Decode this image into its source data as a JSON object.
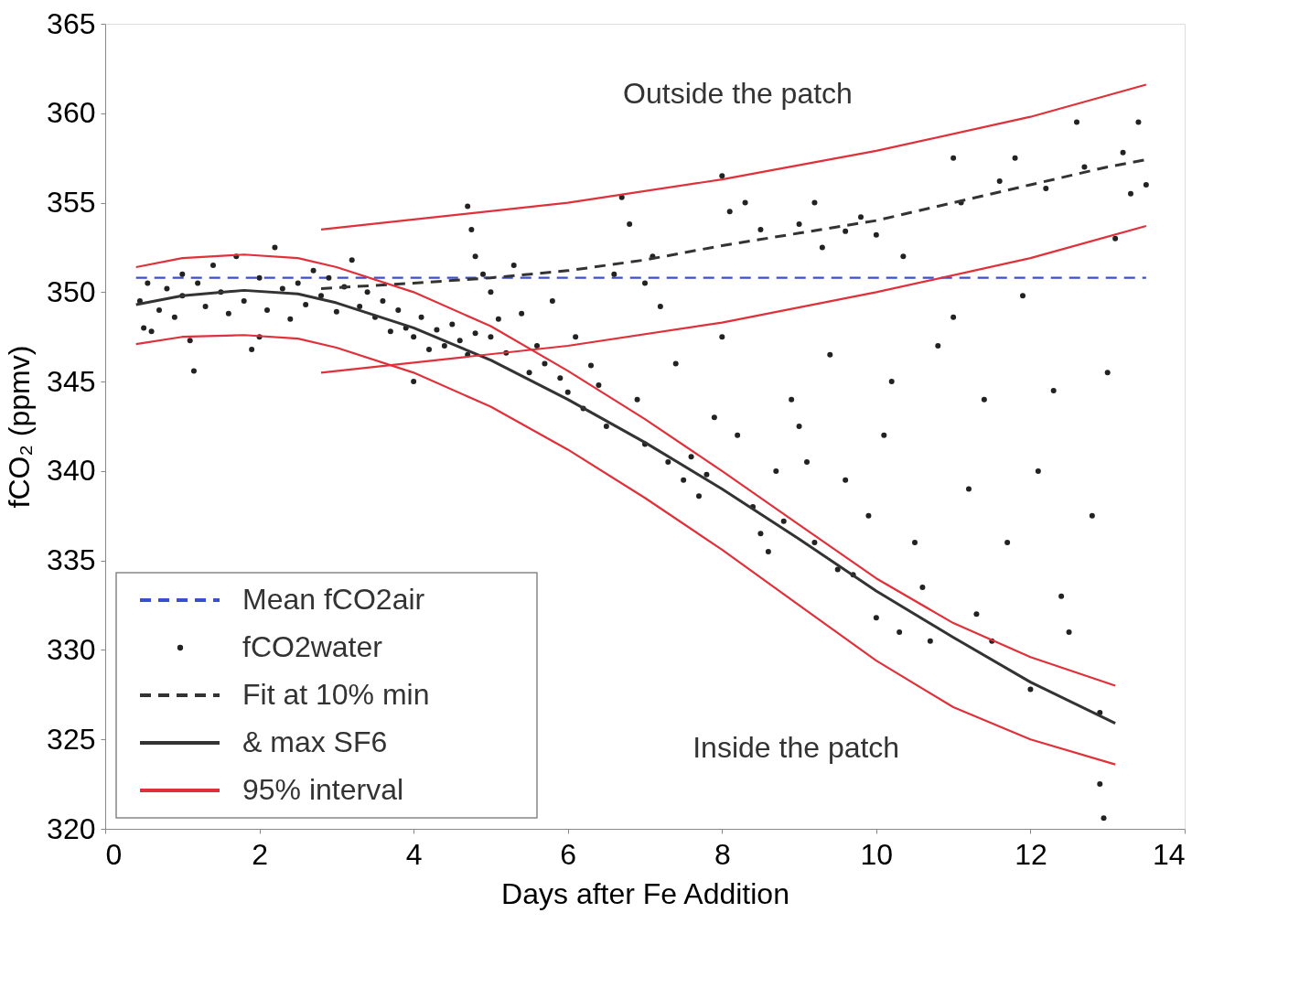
{
  "chart_data": {
    "type": "scatter",
    "xlabel": "Days after Fe Addition",
    "ylabel": "fCO₂ (ppmv)",
    "xlim": [
      0,
      14
    ],
    "ylim": [
      320,
      365
    ],
    "xticks": [
      0,
      2,
      4,
      6,
      8,
      10,
      12,
      14
    ],
    "yticks": [
      320,
      325,
      330,
      335,
      340,
      345,
      350,
      355,
      360,
      365
    ],
    "grid": false,
    "legend": "bottom left",
    "annotations": [
      "Outside the patch",
      "Inside the patch"
    ],
    "series": [
      {
        "name": "Mean fCO2air",
        "type": "line",
        "line_style": "dashed",
        "color": "#3a4fd0",
        "x": [
          0.4,
          13.5
        ],
        "values": [
          350.8,
          350.8
        ]
      },
      {
        "name": "fCO2water",
        "marker": "circle",
        "color": "#222222",
        "x": [
          0.45,
          0.5,
          0.55,
          0.6,
          0.7,
          0.8,
          0.9,
          1.0,
          1.0,
          1.1,
          1.15,
          1.2,
          1.3,
          1.4,
          1.5,
          1.6,
          1.7,
          1.8,
          1.9,
          2.0,
          2.0,
          2.1,
          2.2,
          2.3,
          2.4,
          2.5,
          2.6,
          2.7,
          2.8,
          2.9,
          3.0,
          3.1,
          3.2,
          3.3,
          3.4,
          3.5,
          3.6,
          3.7,
          3.8,
          3.9,
          4.0,
          4.0,
          4.1,
          4.2,
          4.3,
          4.4,
          4.5,
          4.6,
          4.7,
          4.7,
          4.75,
          4.8,
          4.8,
          4.9,
          5.0,
          5.0,
          5.1,
          5.2,
          5.3,
          5.4,
          5.5,
          5.6,
          5.7,
          5.8,
          5.9,
          6.0,
          6.1,
          6.2,
          6.3,
          6.4,
          6.5,
          6.6,
          6.7,
          6.8,
          6.9,
          7.0,
          7.0,
          7.1,
          7.2,
          7.3,
          7.4,
          7.5,
          7.6,
          7.7,
          7.8,
          7.9,
          8.0,
          8.0,
          8.1,
          8.2,
          8.3,
          8.4,
          8.5,
          8.5,
          8.6,
          8.7,
          8.8,
          8.9,
          9.0,
          9.0,
          9.1,
          9.2,
          9.2,
          9.3,
          9.4,
          9.5,
          9.6,
          9.6,
          9.7,
          9.8,
          9.9,
          10.0,
          10.0,
          10.1,
          10.2,
          10.3,
          10.35,
          10.5,
          10.6,
          10.7,
          10.8,
          11.0,
          11.0,
          11.1,
          11.2,
          11.3,
          11.4,
          11.5,
          11.6,
          11.7,
          11.8,
          11.9,
          12.0,
          12.1,
          12.2,
          12.3,
          12.4,
          12.5,
          12.6,
          12.7,
          12.8,
          12.9,
          12.9,
          12.95,
          13.0,
          13.1,
          13.2,
          13.3,
          13.4,
          13.5
        ],
        "values": [
          349.5,
          348,
          350.5,
          347.8,
          349,
          350.2,
          348.6,
          351,
          349.8,
          347.3,
          345.6,
          350.5,
          349.2,
          351.5,
          350,
          348.8,
          352,
          349.5,
          346.8,
          350.8,
          347.5,
          349,
          352.5,
          350.2,
          348.5,
          350.5,
          349.3,
          351.2,
          349.8,
          350.8,
          348.9,
          350.3,
          351.8,
          349.2,
          350,
          348.6,
          349.5,
          347.8,
          349,
          348,
          347.5,
          345,
          348.6,
          346.8,
          347.9,
          347,
          348.2,
          347.3,
          346.5,
          354.8,
          353.5,
          352,
          347.7,
          351,
          350,
          347.5,
          348.5,
          346.6,
          351.5,
          348.8,
          345.5,
          347,
          346,
          349.5,
          345.2,
          344.4,
          347.5,
          343.5,
          345.9,
          344.8,
          342.5,
          351,
          355.3,
          353.8,
          344,
          341.5,
          350.5,
          352,
          349.2,
          340.5,
          346,
          339.5,
          340.8,
          338.6,
          339.8,
          343,
          356.5,
          347.5,
          354.5,
          342,
          355,
          338,
          353.5,
          336.5,
          335.5,
          340,
          337.2,
          344,
          342.5,
          353.8,
          340.5,
          355,
          336,
          352.5,
          346.5,
          334.5,
          353.4,
          339.5,
          334.2,
          354.2,
          337.5,
          353.2,
          331.8,
          342,
          345,
          331,
          352,
          336,
          333.5,
          330.5,
          347,
          357.5,
          348.6,
          355,
          339,
          332,
          344,
          330.5,
          356.2,
          336,
          357.5,
          349.8,
          327.8,
          340,
          355.8,
          344.5,
          333,
          331,
          359.5,
          357,
          337.5,
          326.5,
          322.5,
          320.6,
          345.5,
          353,
          357.8,
          355.5,
          359.5,
          356
        ]
      },
      {
        "name": "Fit at 10% min",
        "type": "line",
        "line_style": "dashed",
        "color": "#333333",
        "x": [
          2.8,
          4,
          5,
          6,
          7,
          8,
          9,
          10,
          11,
          12,
          13,
          13.5
        ],
        "values": [
          350.2,
          350.5,
          350.8,
          351.2,
          351.8,
          352.6,
          353.3,
          354.0,
          355.0,
          356.0,
          357.0,
          357.4
        ]
      },
      {
        "name": "& max SF6",
        "type": "line",
        "line_style": "solid",
        "color": "#333333",
        "x": [
          0.4,
          1,
          1.8,
          2.5,
          3,
          4,
          5,
          6,
          7,
          8,
          9,
          10,
          11,
          12,
          13.1
        ],
        "values": [
          349.3,
          349.8,
          350.1,
          349.9,
          349.4,
          348,
          346.2,
          344,
          341.6,
          339,
          336.2,
          333.3,
          330.7,
          328.2,
          325.9
        ]
      },
      {
        "name": "95% interval",
        "type": "line",
        "line_style": "solid",
        "color": "#e0303a",
        "x": [
          0.4,
          1,
          1.8,
          2.5,
          3,
          4,
          5,
          6,
          7,
          8,
          9,
          10,
          11,
          12,
          13.1
        ],
        "values": [
          351.4,
          351.9,
          352.1,
          351.9,
          351.4,
          350,
          348.1,
          345.6,
          342.9,
          340,
          337,
          334,
          331.5,
          329.6,
          328
        ]
      },
      {
        "type": "line",
        "line_style": "solid",
        "color": "#e0303a",
        "x": [
          0.4,
          1,
          1.8,
          2.5,
          3,
          4,
          5,
          6,
          7,
          8,
          9,
          10,
          11,
          12,
          13.1
        ],
        "values": [
          347.1,
          347.5,
          347.6,
          347.4,
          346.9,
          345.5,
          343.6,
          341.2,
          338.5,
          335.6,
          332.5,
          329.4,
          326.8,
          325,
          323.6
        ]
      },
      {
        "type": "line",
        "line_style": "solid",
        "color": "#e0303a",
        "x": [
          2.8,
          6,
          8,
          10,
          12,
          13.5
        ],
        "values": [
          353.5,
          355,
          356.3,
          357.9,
          359.8,
          361.6
        ]
      },
      {
        "type": "line",
        "line_style": "solid",
        "color": "#e0303a",
        "x": [
          2.8,
          6,
          8,
          10,
          12,
          13.5
        ],
        "values": [
          345.5,
          347,
          348.3,
          350,
          351.9,
          353.7
        ]
      }
    ]
  }
}
